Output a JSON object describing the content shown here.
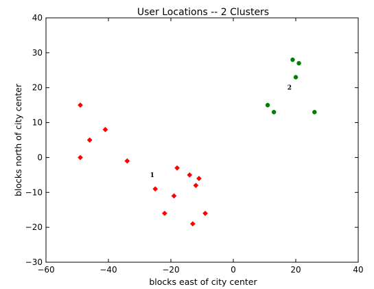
{
  "chart_data": {
    "type": "scatter",
    "title": "User Locations -- 2 Clusters",
    "xlabel": "blocks east of city center",
    "ylabel": "blocks north of city center",
    "xlim": [
      -60,
      40
    ],
    "ylim": [
      -30,
      40
    ],
    "x_ticks": [
      -60,
      -40,
      -20,
      0,
      20,
      40
    ],
    "y_ticks": [
      -30,
      -20,
      -10,
      0,
      10,
      20,
      30,
      40
    ],
    "grid": false,
    "series": [
      {
        "marker": "diamond",
        "color": "#ff0000",
        "points": [
          {
            "x": -49,
            "y": 15
          },
          {
            "x": -49,
            "y": 0
          },
          {
            "x": -46,
            "y": 5
          },
          {
            "x": -41,
            "y": 8
          },
          {
            "x": -34,
            "y": -1
          },
          {
            "x": -25,
            "y": -9
          },
          {
            "x": -22,
            "y": -16
          },
          {
            "x": -19,
            "y": -11
          },
          {
            "x": -18,
            "y": -3
          },
          {
            "x": -14,
            "y": -5
          },
          {
            "x": -13,
            "y": -19
          },
          {
            "x": -12,
            "y": -8
          },
          {
            "x": -11,
            "y": -6
          },
          {
            "x": -9,
            "y": -16
          }
        ]
      },
      {
        "marker": "circle",
        "color": "#008000",
        "points": [
          {
            "x": 11,
            "y": 15
          },
          {
            "x": 13,
            "y": 13
          },
          {
            "x": 19,
            "y": 28
          },
          {
            "x": 20,
            "y": 23
          },
          {
            "x": 21,
            "y": 27
          },
          {
            "x": 26,
            "y": 13
          }
        ]
      }
    ],
    "annotations": [
      {
        "text": "1",
        "x": -26,
        "y": -5
      },
      {
        "text": "2",
        "x": 18,
        "y": 20
      }
    ]
  }
}
